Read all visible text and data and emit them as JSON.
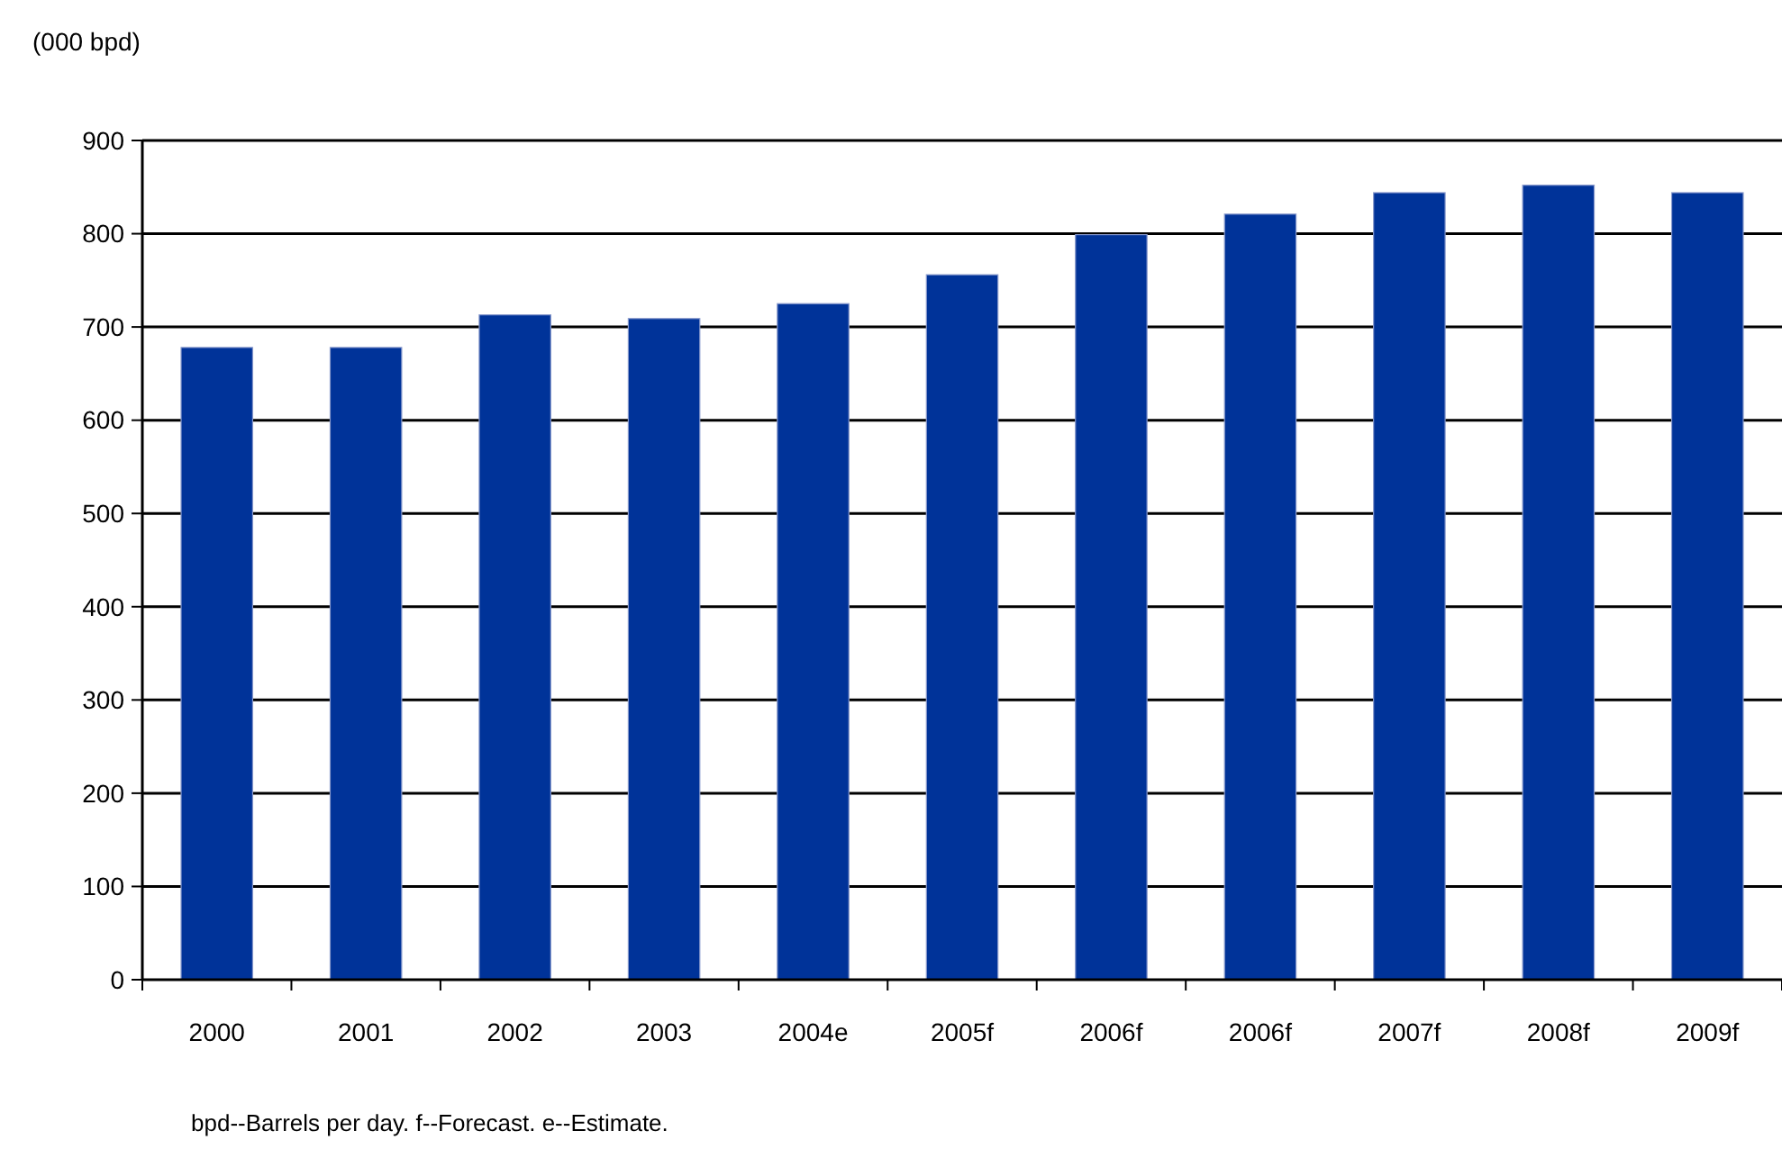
{
  "chart_data": {
    "type": "bar",
    "ylabel": "(000 bpd)",
    "categories": [
      "2000",
      "2001",
      "2002",
      "2003",
      "2004e",
      "2005f",
      "2006f",
      "2006f",
      "2007f",
      "2008f",
      "2009f"
    ],
    "values": [
      678,
      678,
      713,
      709,
      725,
      756,
      799,
      821,
      844,
      852,
      844
    ],
    "color": "#003399",
    "ylim": [
      0,
      900
    ],
    "yticks": [
      0,
      100,
      200,
      300,
      400,
      500,
      600,
      700,
      800,
      900
    ],
    "grid": "y",
    "annotations": [
      "bpd--Barrels per day. f--Forecast. e--Estimate."
    ]
  }
}
